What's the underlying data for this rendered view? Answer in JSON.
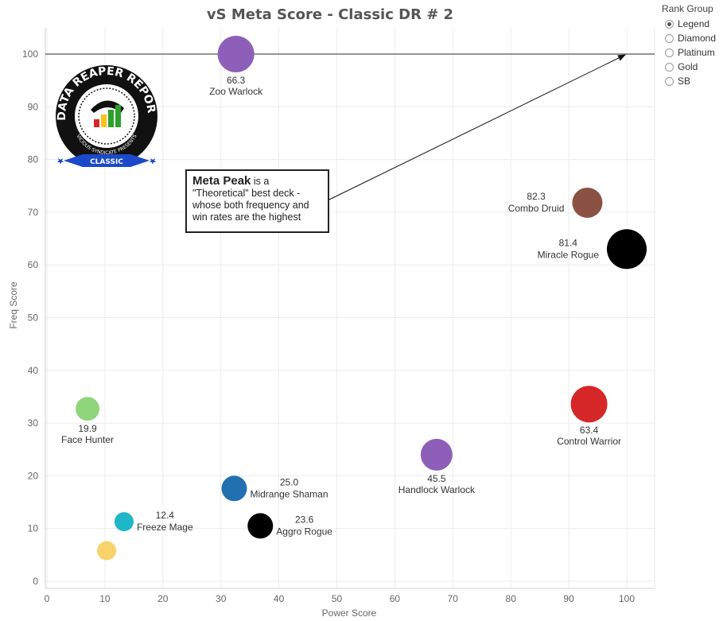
{
  "chart_data": {
    "type": "scatter",
    "title": "vS Meta Score - Classic DR # 2",
    "xlabel": "Power Score",
    "ylabel": "Freq Score",
    "xlim": [
      0,
      105
    ],
    "ylim": [
      0,
      105
    ],
    "x_ticks": [
      0,
      10,
      20,
      30,
      40,
      50,
      60,
      70,
      80,
      90,
      100
    ],
    "y_ticks": [
      0,
      10,
      20,
      30,
      40,
      50,
      60,
      70,
      80,
      90,
      100
    ],
    "grid": true,
    "reference_line_y": 100,
    "points": [
      {
        "name": "Zoo Warlock",
        "value": "66.3",
        "x": 32.6,
        "y": 100.0,
        "color": "#8e5fb8",
        "size": 23,
        "label_pos": "below"
      },
      {
        "name": "Combo Druid",
        "value": "82.3",
        "x": 93.2,
        "y": 71.8,
        "color": "#8b5142",
        "size": 19,
        "label_pos": "left"
      },
      {
        "name": "Miracle Rogue",
        "value": "81.4",
        "x": 100.0,
        "y": 63.0,
        "color": "#000000",
        "size": 25,
        "label_pos": "left"
      },
      {
        "name": "Face Hunter",
        "value": "19.9",
        "x": 7.0,
        "y": 32.7,
        "color": "#8fd57b",
        "size": 15,
        "label_pos": "below"
      },
      {
        "name": "Control Warrior",
        "value": "63.4",
        "x": 93.5,
        "y": 33.6,
        "color": "#d62728",
        "size": 23,
        "label_pos": "below"
      },
      {
        "name": "Handlock Warlock",
        "value": "45.5",
        "x": 67.2,
        "y": 24.0,
        "color": "#8e5fb8",
        "size": 20,
        "label_pos": "below"
      },
      {
        "name": "Midrange Shaman",
        "value": "25.0",
        "x": 32.3,
        "y": 17.6,
        "color": "#2270b0",
        "size": 16,
        "label_pos": "right"
      },
      {
        "name": "Freeze Mage",
        "value": "12.4",
        "x": 13.3,
        "y": 11.3,
        "color": "#1fb6c9",
        "size": 12,
        "label_pos": "right"
      },
      {
        "name": "Aggro Rogue",
        "value": "23.6",
        "x": 36.8,
        "y": 10.5,
        "color": "#000000",
        "size": 16,
        "label_pos": "right"
      },
      {
        "name": "",
        "value": "",
        "x": 10.3,
        "y": 5.8,
        "color": "#f9d26a",
        "size": 12,
        "label_pos": "none"
      }
    ]
  },
  "annotation": {
    "bold": "Meta Peak",
    "text": " is a \"Theoretical\" best deck - whose both frequency and win rates are the highest"
  },
  "logo": {
    "line1": "DATA REAPER REPORT",
    "line2": "VICIOUS SYNDICATE PRESENTS",
    "banner": "CLASSIC"
  },
  "legend": {
    "title": "Rank Group",
    "items": [
      {
        "label": "Legend",
        "checked": true
      },
      {
        "label": "Diamond",
        "checked": false
      },
      {
        "label": "Platinum",
        "checked": false
      },
      {
        "label": "Gold",
        "checked": false
      },
      {
        "label": "SB",
        "checked": false
      }
    ]
  }
}
